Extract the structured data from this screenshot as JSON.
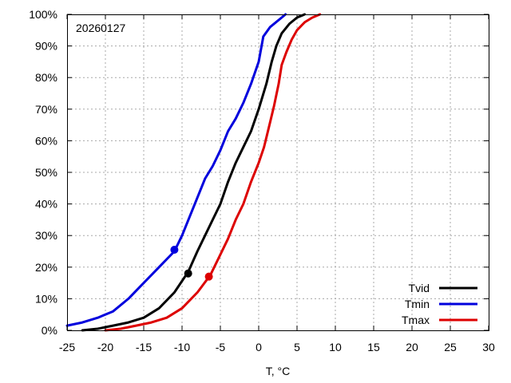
{
  "chart_data": {
    "type": "line",
    "annotation": "20260127",
    "xlabel": "T, °C",
    "ylabel": "",
    "xlim": [
      -25,
      30
    ],
    "ylim": [
      0,
      100
    ],
    "x_ticks": [
      "-25",
      "-20",
      "-15",
      "-10",
      "-5",
      "0",
      "5",
      "10",
      "15",
      "20",
      "25",
      "30"
    ],
    "y_ticks": [
      "0%",
      "10%",
      "20%",
      "30%",
      "40%",
      "50%",
      "60%",
      "70%",
      "80%",
      "90%",
      "100%"
    ],
    "grid": true,
    "legend_position": "bottom-right",
    "series": [
      {
        "name": "Tvid",
        "color": "#000000",
        "points": [
          [
            -23,
            0
          ],
          [
            -21,
            0.5
          ],
          [
            -19,
            1.5
          ],
          [
            -17,
            2.5
          ],
          [
            -15,
            4
          ],
          [
            -13,
            7
          ],
          [
            -11,
            12
          ],
          [
            -9.2,
            18.5
          ],
          [
            -8,
            25
          ],
          [
            -7,
            30
          ],
          [
            -6,
            35
          ],
          [
            -5,
            40
          ],
          [
            -4,
            47
          ],
          [
            -3,
            53
          ],
          [
            -2,
            58
          ],
          [
            -1,
            63
          ],
          [
            0,
            70
          ],
          [
            1,
            78
          ],
          [
            1.7,
            85
          ],
          [
            2.3,
            90
          ],
          [
            3,
            94
          ],
          [
            4,
            97
          ],
          [
            5,
            99
          ],
          [
            6,
            100
          ]
        ],
        "marker": [
          -9.2,
          18
        ]
      },
      {
        "name": "Tmin",
        "color": "#0000dd",
        "points": [
          [
            -25,
            1.5
          ],
          [
            -23,
            2.5
          ],
          [
            -21,
            4
          ],
          [
            -19,
            6
          ],
          [
            -17,
            10
          ],
          [
            -15,
            15
          ],
          [
            -13,
            20
          ],
          [
            -11,
            25
          ],
          [
            -10,
            30
          ],
          [
            -9,
            36
          ],
          [
            -8,
            42
          ],
          [
            -7,
            48
          ],
          [
            -6,
            52
          ],
          [
            -5,
            57
          ],
          [
            -4,
            63
          ],
          [
            -3,
            67
          ],
          [
            -2,
            72
          ],
          [
            -1,
            78
          ],
          [
            0,
            85
          ],
          [
            0.6,
            93
          ],
          [
            1.5,
            96
          ],
          [
            3,
            99
          ],
          [
            3.5,
            100
          ]
        ],
        "marker": [
          -11,
          25.5
        ]
      },
      {
        "name": "Tmax",
        "color": "#dd0000",
        "points": [
          [
            -20,
            0
          ],
          [
            -18,
            0.5
          ],
          [
            -16,
            1.5
          ],
          [
            -14,
            2.5
          ],
          [
            -12,
            4
          ],
          [
            -10,
            7
          ],
          [
            -8,
            12
          ],
          [
            -6.3,
            17.5
          ],
          [
            -5,
            24
          ],
          [
            -4,
            29
          ],
          [
            -3,
            35
          ],
          [
            -2,
            40
          ],
          [
            -1,
            47
          ],
          [
            0,
            53
          ],
          [
            0.7,
            58
          ],
          [
            1.3,
            64
          ],
          [
            2,
            71
          ],
          [
            2.6,
            78
          ],
          [
            3,
            84
          ],
          [
            3.6,
            88
          ],
          [
            4.3,
            92
          ],
          [
            5,
            95
          ],
          [
            6,
            97.5
          ],
          [
            7,
            99
          ],
          [
            8,
            100
          ]
        ],
        "marker": [
          -6.5,
          17
        ]
      }
    ]
  }
}
